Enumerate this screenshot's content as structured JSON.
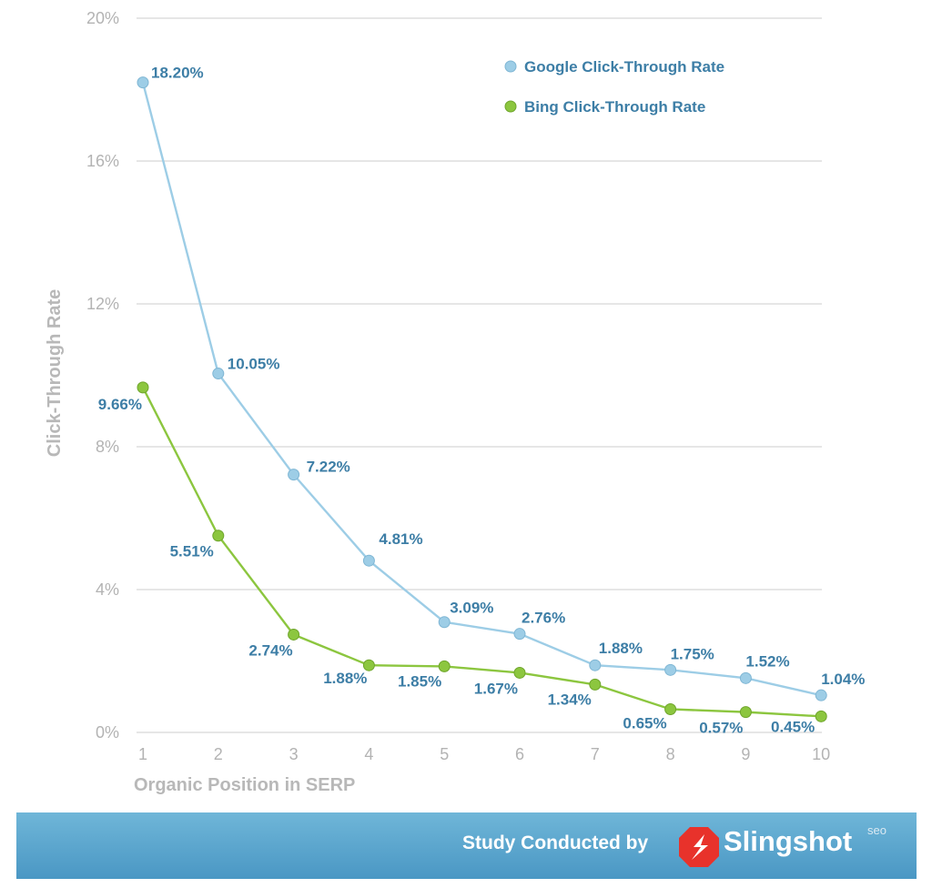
{
  "chart_data": {
    "type": "line",
    "title": "",
    "xlabel": "Organic Position in SERP",
    "ylabel": "Click-Through Rate",
    "x": [
      1,
      2,
      3,
      4,
      5,
      6,
      7,
      8,
      9,
      10
    ],
    "ylim": [
      0,
      20
    ],
    "yticks": [
      0,
      4,
      8,
      12,
      16,
      20
    ],
    "ytick_labels": [
      "0%",
      "4%",
      "8%",
      "12%",
      "16%",
      "20%"
    ],
    "grid": true,
    "legend_position": "top-right",
    "series": [
      {
        "name": "Google Click-Through Rate",
        "color": "#9dcde6",
        "values": [
          18.2,
          10.05,
          7.22,
          4.81,
          3.09,
          2.76,
          1.88,
          1.75,
          1.52,
          1.04
        ],
        "labels": [
          "18.20%",
          "10.05%",
          "7.22%",
          "4.81%",
          "3.09%",
          "2.76%",
          "1.88%",
          "1.75%",
          "1.52%",
          "1.04%"
        ]
      },
      {
        "name": "Bing Click-Through Rate",
        "color": "#8cc63f",
        "values": [
          9.66,
          5.51,
          2.74,
          1.88,
          1.85,
          1.67,
          1.34,
          0.65,
          0.57,
          0.45
        ],
        "labels": [
          "9.66%",
          "5.51%",
          "2.74%",
          "1.88%",
          "1.85%",
          "1.67%",
          "1.34%",
          "0.65%",
          "0.57%",
          "0.45%"
        ]
      }
    ]
  },
  "footer": {
    "study_text": "Study Conducted by",
    "brand_name": "Slingshot",
    "brand_superscript": "seo",
    "brand_logo_icon": "slingshot-logo-icon",
    "background_color": "#5aa8d0"
  }
}
